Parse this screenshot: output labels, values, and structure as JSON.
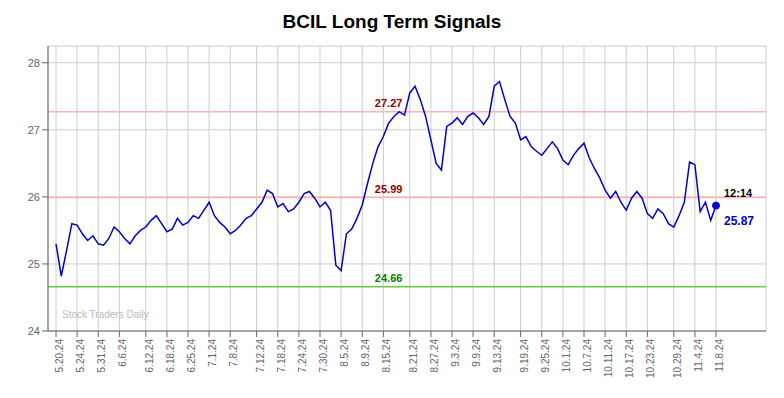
{
  "chart_data": {
    "type": "line",
    "title": "BCIL Long Term Signals",
    "categories": [
      "5.20.24",
      null,
      null,
      null,
      "5.24.24",
      null,
      null,
      null,
      "5.31.24",
      null,
      null,
      null,
      "6.6.24",
      null,
      null,
      null,
      null,
      "6.12.24",
      null,
      null,
      null,
      "6.18.24",
      null,
      null,
      null,
      "6.25.24",
      null,
      null,
      null,
      "7.1.24",
      null,
      null,
      null,
      "7.8.24",
      null,
      null,
      null,
      null,
      "7.12.24",
      null,
      null,
      null,
      "7.18.24",
      null,
      null,
      null,
      "7.24.24",
      null,
      null,
      null,
      "7.30.24",
      null,
      null,
      null,
      "8.5.24",
      null,
      null,
      null,
      "8.9.24",
      null,
      null,
      null,
      "8.15.24",
      null,
      null,
      null,
      null,
      "8.21.24",
      null,
      null,
      null,
      "8.27.24",
      null,
      null,
      null,
      "9.3.24",
      null,
      null,
      null,
      "9.9.24",
      null,
      null,
      null,
      "9.13.24",
      null,
      null,
      null,
      null,
      "9.19.24",
      null,
      null,
      null,
      "9.25.24",
      null,
      null,
      null,
      "10.1.24",
      null,
      null,
      null,
      "10.7.24",
      null,
      null,
      null,
      "10.11.24",
      null,
      null,
      null,
      "10.17.24",
      null,
      null,
      null,
      "10.23.24",
      null,
      null,
      null,
      null,
      "10.29.24",
      null,
      null,
      null,
      "11.4.24",
      null,
      null,
      null,
      "11.8.24"
    ],
    "values": [
      25.3,
      24.82,
      25.2,
      25.6,
      25.58,
      25.45,
      25.35,
      25.42,
      25.3,
      25.28,
      25.38,
      25.55,
      25.48,
      25.38,
      25.3,
      25.42,
      25.5,
      25.55,
      25.65,
      25.72,
      25.6,
      25.48,
      25.52,
      25.68,
      25.58,
      25.62,
      25.72,
      25.68,
      25.8,
      25.92,
      25.72,
      25.62,
      25.55,
      25.45,
      25.5,
      25.58,
      25.68,
      25.72,
      25.82,
      25.92,
      26.1,
      26.05,
      25.85,
      25.9,
      25.78,
      25.82,
      25.92,
      26.05,
      26.08,
      25.98,
      25.85,
      25.92,
      25.8,
      24.98,
      24.9,
      25.45,
      25.52,
      25.68,
      25.88,
      26.2,
      26.5,
      26.75,
      26.9,
      27.1,
      27.2,
      27.27,
      27.22,
      27.55,
      27.65,
      27.45,
      27.2,
      26.85,
      26.5,
      26.4,
      27.05,
      27.1,
      27.18,
      27.08,
      27.2,
      27.25,
      27.18,
      27.08,
      27.2,
      27.65,
      27.72,
      27.45,
      27.2,
      27.1,
      26.85,
      26.9,
      26.75,
      26.68,
      26.62,
      26.72,
      26.82,
      26.72,
      26.55,
      26.48,
      26.62,
      26.72,
      26.8,
      26.58,
      26.42,
      26.28,
      26.1,
      25.98,
      26.08,
      25.92,
      25.8,
      25.98,
      26.08,
      25.98,
      25.75,
      25.68,
      25.82,
      25.75,
      25.6,
      25.55,
      25.72,
      25.92,
      26.52,
      26.48,
      25.78,
      25.92,
      25.65,
      25.87
    ],
    "color": "#0000cc",
    "hlines": [
      {
        "value": 27.27,
        "color": "#ffb3b3",
        "label": "27.27",
        "label_color": "darkred"
      },
      {
        "value": 25.99,
        "color": "#ffb3b3",
        "label": "25.99",
        "label_color": "darkred"
      },
      {
        "value": 24.66,
        "color": "#66cc44",
        "label": "24.66",
        "label_color": "green"
      }
    ],
    "annotations": [
      {
        "text": "12:14",
        "anchor": "last_point_above",
        "color": "#000000"
      },
      {
        "text": "25.87",
        "anchor": "last_point_below",
        "color": "#0000cc"
      },
      {
        "text": "Stock Traders Daily",
        "anchor": "watermark",
        "color": "#aaaaaa"
      }
    ],
    "ylim": [
      24.0,
      28.25
    ],
    "yticks": [
      24,
      25,
      26,
      27,
      28
    ],
    "grid": true
  }
}
